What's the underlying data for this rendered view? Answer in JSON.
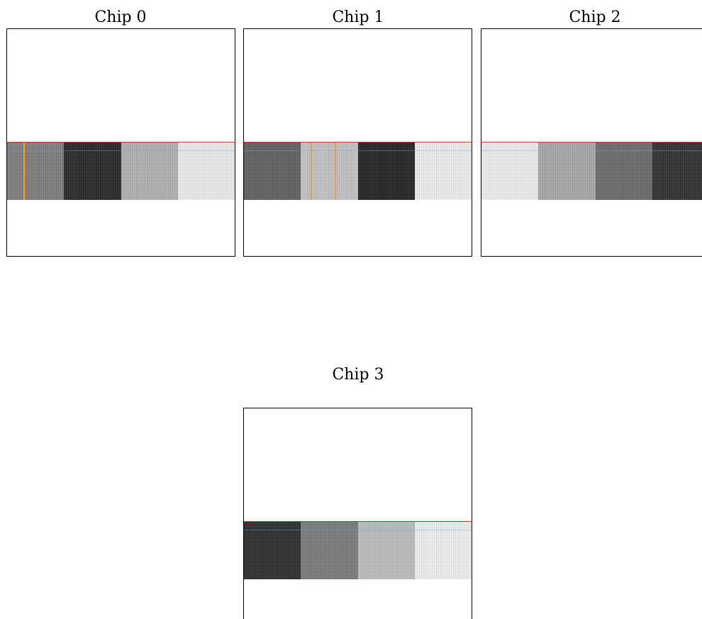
{
  "chips": [
    {
      "title": "Chip 0",
      "blocks": [
        "#7d7d7d",
        "#262626",
        "#b0b0b0",
        "#ececec"
      ],
      "markers": [
        1
      ]
    },
    {
      "title": "Chip 1",
      "blocks": [
        "#5f5f5f",
        "#c2c2c2",
        "#222222",
        "#eeeeee"
      ],
      "markers": [
        2
      ]
    },
    {
      "title": "Chip 2",
      "blocks": [
        "#ededed",
        "#a8a8a8",
        "#6a6a6a",
        "#2e2e2e"
      ],
      "markers": []
    },
    {
      "title": "Chip 3",
      "blocks": [
        "#2b2b2b",
        "#7a7a7a",
        "#bdbdbd",
        "#efefef"
      ],
      "markers": []
    }
  ],
  "colors": {
    "boundary_line": "#d62728",
    "marker_line": "#f0a020"
  }
}
